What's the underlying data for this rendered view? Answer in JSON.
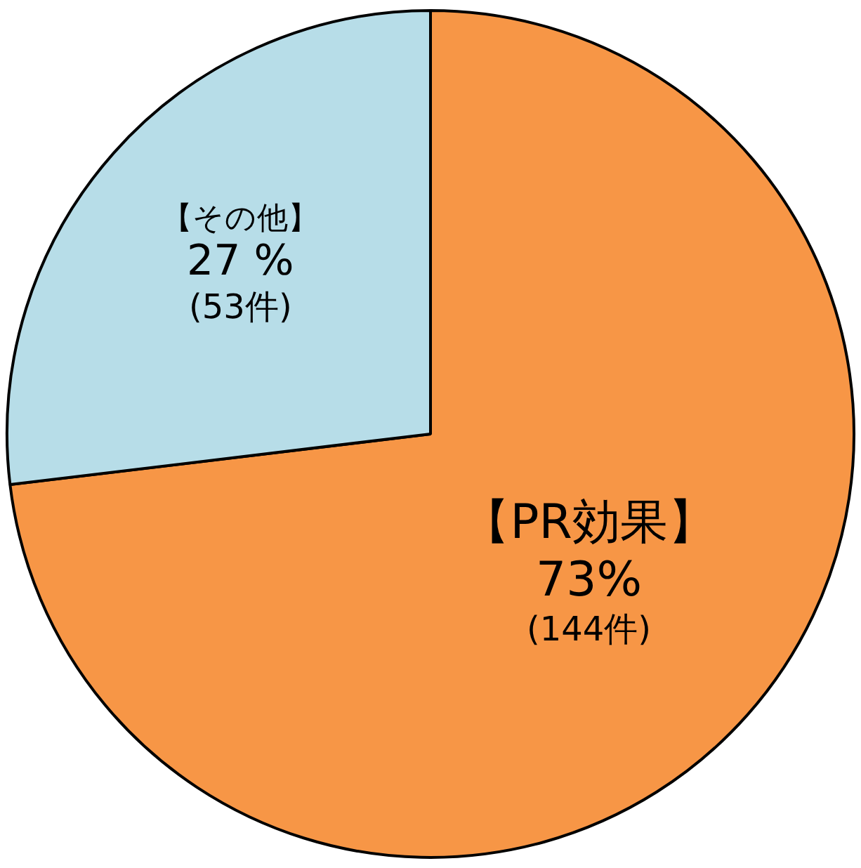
{
  "chart_data": {
    "type": "pie",
    "categories": [
      "【PR効果】",
      "【その他】"
    ],
    "values": [
      144,
      53
    ],
    "colors": [
      "#f79646",
      "#b7dde8"
    ],
    "value_labels": [
      "73%\n(144件)",
      "27 %\n(53件)"
    ],
    "legend": false
  }
}
